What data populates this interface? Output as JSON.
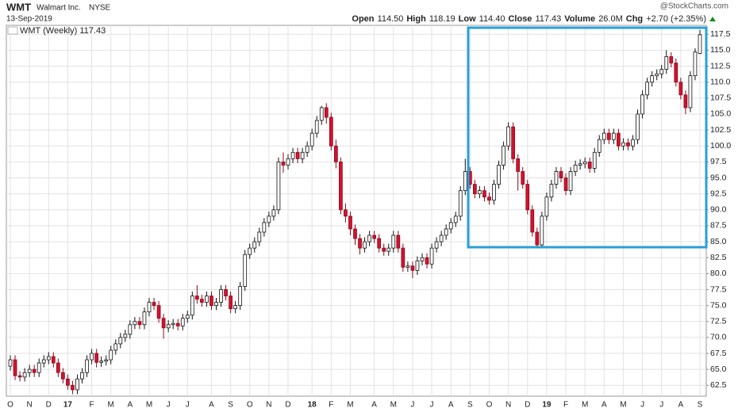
{
  "header": {
    "symbol": "WMT",
    "name": "Walmart Inc.",
    "exchange": "NYSE",
    "date": "13-Sep-2019",
    "watermark": "@StockCharts.com",
    "quote": [
      {
        "label": "Open",
        "value": "114.50"
      },
      {
        "label": "High",
        "value": "118.19"
      },
      {
        "label": "Low",
        "value": "114.40"
      },
      {
        "label": "Close",
        "value": "117.43"
      },
      {
        "label": "Volume",
        "value": "26.0M"
      },
      {
        "label": "Chg",
        "value": "+2.70 (+2.35%)"
      }
    ]
  },
  "chart_data": {
    "type": "candlestick",
    "legend": "WMT (Weekly) 117.43",
    "grid": true,
    "up_color": "#ffffff",
    "down_color": "#d3122e",
    "categories": [
      "O",
      null,
      null,
      null,
      "N",
      null,
      null,
      null,
      "D",
      null,
      null,
      null,
      "17",
      null,
      null,
      null,
      null,
      "F",
      null,
      null,
      null,
      "M",
      null,
      null,
      null,
      "A",
      null,
      null,
      null,
      "M",
      null,
      null,
      null,
      "J",
      null,
      null,
      null,
      "J",
      null,
      null,
      null,
      null,
      "A",
      null,
      null,
      null,
      "S",
      null,
      null,
      null,
      "O",
      null,
      null,
      null,
      "N",
      null,
      null,
      null,
      "D",
      null,
      null,
      null,
      null,
      "18",
      null,
      null,
      null,
      "F",
      null,
      null,
      null,
      "M",
      null,
      null,
      null,
      null,
      "A",
      null,
      null,
      null,
      "M",
      null,
      null,
      null,
      "J",
      null,
      null,
      null,
      "J",
      null,
      null,
      null,
      "A",
      null,
      null,
      null,
      "S",
      null,
      null,
      null,
      "O",
      null,
      null,
      null,
      "N",
      null,
      null,
      null,
      "D",
      null,
      null,
      null,
      "19",
      null,
      null,
      null,
      "F",
      null,
      null,
      null,
      "M",
      null,
      null,
      null,
      "A",
      null,
      null,
      null,
      "M",
      null,
      null,
      null,
      "J",
      null,
      null,
      null,
      "J",
      null,
      null,
      null,
      "A",
      null,
      null,
      null,
      "S",
      null
    ],
    "ohlc": [
      [
        65.5,
        67.2,
        64.8,
        66.5
      ],
      [
        66.5,
        67.2,
        63.3,
        64
      ],
      [
        64,
        64.7,
        63.1,
        63.8
      ],
      [
        63.8,
        65.2,
        63.1,
        64.5
      ],
      [
        64.5,
        65.7,
        63.8,
        65
      ],
      [
        65,
        65.7,
        63.8,
        64.5
      ],
      [
        64.5,
        66.7,
        63.8,
        66
      ],
      [
        66,
        67.2,
        65.3,
        66.5
      ],
      [
        66.5,
        67.7,
        65.8,
        67
      ],
      [
        67,
        67.7,
        65.3,
        66
      ],
      [
        66,
        66.7,
        63.8,
        64.5
      ],
      [
        64.5,
        65.2,
        62.8,
        63.5
      ],
      [
        63.5,
        64.2,
        61.8,
        62.5
      ],
      [
        62.5,
        63.2,
        61.1,
        61.8
      ],
      [
        61.8,
        64.2,
        61.1,
        63.5
      ],
      [
        63.5,
        65.2,
        62.8,
        64.5
      ],
      [
        64.5,
        67.2,
        63.8,
        66.5
      ],
      [
        66.5,
        68.2,
        65.8,
        67.5
      ],
      [
        67.5,
        68.2,
        65.3,
        66.1
      ],
      [
        66.1,
        67,
        65.4,
        66.3
      ],
      [
        66.3,
        67.2,
        65.6,
        66.5
      ],
      [
        66.5,
        68.7,
        65.8,
        68
      ],
      [
        68,
        69.7,
        67.3,
        69
      ],
      [
        69,
        70.7,
        68.3,
        70
      ],
      [
        70,
        71.2,
        69.3,
        70.5
      ],
      [
        70.5,
        72.7,
        69.8,
        72
      ],
      [
        72,
        73.2,
        71.3,
        72.5
      ],
      [
        72.5,
        73.2,
        71.3,
        72
      ],
      [
        72,
        74.7,
        71.3,
        74
      ],
      [
        74,
        76.2,
        73.3,
        75.5
      ],
      [
        75.5,
        76.2,
        74.3,
        75
      ],
      [
        75,
        75.7,
        72.3,
        73
      ],
      [
        73,
        73.7,
        69.8,
        71.5
      ],
      [
        71.5,
        72.7,
        70.8,
        72
      ],
      [
        72,
        72.9,
        71.3,
        72.2
      ],
      [
        72.2,
        72.9,
        71.1,
        71.8
      ],
      [
        71.8,
        73.7,
        71.1,
        73
      ],
      [
        73,
        74.2,
        72.3,
        73.5
      ],
      [
        73.5,
        77.2,
        72.8,
        76.5
      ],
      [
        76.5,
        78.2,
        75.3,
        76
      ],
      [
        76,
        76.7,
        74.8,
        75.5
      ],
      [
        75.5,
        77.2,
        74.8,
        76.5
      ],
      [
        76.5,
        77.2,
        74.3,
        75
      ],
      [
        75,
        76.2,
        74.3,
        75.5
      ],
      [
        75.5,
        78.2,
        74.8,
        77.5
      ],
      [
        77.5,
        78.2,
        75.8,
        76.5
      ],
      [
        76.5,
        77.2,
        73.8,
        74.5
      ],
      [
        74.5,
        75.7,
        73.8,
        75
      ],
      [
        75,
        78.7,
        74.3,
        78
      ],
      [
        78,
        83.7,
        77.3,
        83
      ],
      [
        83,
        84.7,
        82.3,
        84
      ],
      [
        84,
        85.7,
        83.3,
        85
      ],
      [
        85,
        87.2,
        84.3,
        86.5
      ],
      [
        86.5,
        88.7,
        85.8,
        88
      ],
      [
        88,
        89.7,
        87.3,
        89
      ],
      [
        89,
        90.7,
        88.3,
        90
      ],
      [
        90,
        98.2,
        89.3,
        97.5
      ],
      [
        97.5,
        99,
        95.8,
        97
      ],
      [
        97,
        98.7,
        96.3,
        98
      ],
      [
        98,
        99.7,
        97.3,
        99
      ],
      [
        99,
        99.7,
        97.3,
        98
      ],
      [
        98,
        99.7,
        97.3,
        99
      ],
      [
        99,
        100.7,
        98.3,
        100
      ],
      [
        100,
        102.7,
        99.3,
        102
      ],
      [
        102,
        104.7,
        101.3,
        104
      ],
      [
        104,
        106.3,
        103.3,
        106
      ],
      [
        106,
        106.7,
        103.5,
        104.5
      ],
      [
        104.5,
        105.2,
        99.3,
        100
      ],
      [
        100,
        101,
        96.5,
        97.5
      ],
      [
        97.5,
        98.2,
        89.3,
        90
      ],
      [
        90,
        91,
        88,
        89
      ],
      [
        89,
        89.7,
        86,
        87
      ],
      [
        87,
        87.7,
        84.5,
        85.5
      ],
      [
        85.5,
        86.2,
        83,
        84
      ],
      [
        84,
        85.7,
        83.3,
        85
      ],
      [
        85,
        86.7,
        84.3,
        86
      ],
      [
        86,
        86.7,
        84.8,
        85.5
      ],
      [
        85.5,
        86.2,
        83.3,
        84
      ],
      [
        84,
        84.7,
        82.8,
        83.5
      ],
      [
        83.5,
        84.7,
        82.8,
        84
      ],
      [
        84,
        86.7,
        83.3,
        86
      ],
      [
        86,
        86.7,
        83.3,
        84
      ],
      [
        84,
        84.7,
        80.3,
        81
      ],
      [
        81,
        81.9,
        80.3,
        81.2
      ],
      [
        81.2,
        81.9,
        79.3,
        80.5
      ],
      [
        80.5,
        82.7,
        79.8,
        82
      ],
      [
        82,
        83.2,
        81.3,
        82.5
      ],
      [
        82.5,
        83.2,
        80.8,
        81.5
      ],
      [
        81.5,
        84.7,
        80.8,
        84
      ],
      [
        84,
        85.7,
        83.3,
        85
      ],
      [
        85,
        86.7,
        84.3,
        86
      ],
      [
        86,
        87.7,
        85.3,
        87
      ],
      [
        87,
        88.7,
        86.3,
        88
      ],
      [
        88,
        89.7,
        87.3,
        89
      ],
      [
        89,
        93.7,
        88.3,
        93
      ],
      [
        93,
        98,
        92.3,
        96
      ],
      [
        96,
        96.7,
        93.3,
        94
      ],
      [
        94,
        94.7,
        91.8,
        92.5
      ],
      [
        92.5,
        93.7,
        91.8,
        93
      ],
      [
        93,
        93.7,
        91.3,
        92
      ],
      [
        92,
        92.7,
        90.8,
        91.5
      ],
      [
        91.5,
        94.7,
        90.8,
        94
      ],
      [
        94,
        97.7,
        93.3,
        97
      ],
      [
        97,
        100.7,
        96.3,
        100
      ],
      [
        100,
        103.7,
        99.3,
        103
      ],
      [
        103,
        103.7,
        97.3,
        98
      ],
      [
        98,
        98.7,
        93,
        96
      ],
      [
        96,
        96.7,
        93.3,
        94
      ],
      [
        94,
        94.7,
        89.3,
        90
      ],
      [
        90,
        90.7,
        85.8,
        86.5
      ],
      [
        86.5,
        87.2,
        84,
        84.5
      ],
      [
        84.5,
        89.7,
        84,
        89
      ],
      [
        89,
        92.7,
        88.3,
        92
      ],
      [
        92,
        94.7,
        91.3,
        94
      ],
      [
        94,
        96.7,
        93.3,
        96
      ],
      [
        96,
        96.7,
        94.3,
        95
      ],
      [
        95,
        95.7,
        92.3,
        93
      ],
      [
        93,
        96.7,
        92.3,
        96
      ],
      [
        96,
        97.7,
        95.3,
        97
      ],
      [
        97,
        97.9,
        96.3,
        97.2
      ],
      [
        97.2,
        98.2,
        96.5,
        97.5
      ],
      [
        97.5,
        98.2,
        95.8,
        96.5
      ],
      [
        96.5,
        99.7,
        95.8,
        99
      ],
      [
        99,
        101.7,
        98.3,
        101
      ],
      [
        101,
        102.7,
        100.3,
        102
      ],
      [
        102,
        102.7,
        100.3,
        101
      ],
      [
        101,
        102.7,
        100.3,
        102
      ],
      [
        102,
        102.7,
        99.3,
        100
      ],
      [
        100,
        101.2,
        99.3,
        100.5
      ],
      [
        100.5,
        101.2,
        99.3,
        100
      ],
      [
        100,
        101.7,
        99.3,
        101
      ],
      [
        101,
        105.7,
        100.3,
        105
      ],
      [
        105,
        108.7,
        104.3,
        108
      ],
      [
        108,
        110.7,
        107.3,
        110
      ],
      [
        110,
        111.7,
        109.3,
        111
      ],
      [
        111,
        112,
        110.3,
        111.3
      ],
      [
        111.3,
        112.7,
        110.6,
        112
      ],
      [
        112,
        115,
        111.3,
        114
      ],
      [
        114,
        114.7,
        112.3,
        113
      ],
      [
        113,
        113.7,
        109.3,
        110
      ],
      [
        110,
        110.7,
        107.3,
        108
      ],
      [
        108,
        108.7,
        105,
        106
      ],
      [
        106,
        111.7,
        105.3,
        111
      ],
      [
        111,
        115.3,
        110.3,
        114.73
      ],
      [
        114.5,
        118.19,
        114.4,
        117.43
      ]
    ],
    "ylim": [
      60.8,
      118.9
    ],
    "yticks": [
      62.5,
      {
        "value": 65,
        "label": "65.0"
      },
      67.5,
      {
        "value": 70,
        "label": "70.0"
      },
      72.5,
      {
        "value": 75,
        "label": "75.0"
      },
      77.5,
      {
        "value": 80,
        "label": "80.0"
      },
      82.5,
      {
        "value": 85,
        "label": "85.0"
      },
      87.5,
      {
        "value": 90,
        "label": "90.0"
      },
      92.5,
      {
        "value": 95,
        "label": "95.0"
      },
      97.5,
      {
        "value": 100,
        "label": "100.0"
      },
      102.5,
      {
        "value": 105,
        "label": "105.0"
      },
      107.5,
      {
        "value": 110,
        "label": "110.0"
      },
      112.5,
      {
        "value": 115,
        "label": "115.0"
      },
      117.5
    ]
  }
}
